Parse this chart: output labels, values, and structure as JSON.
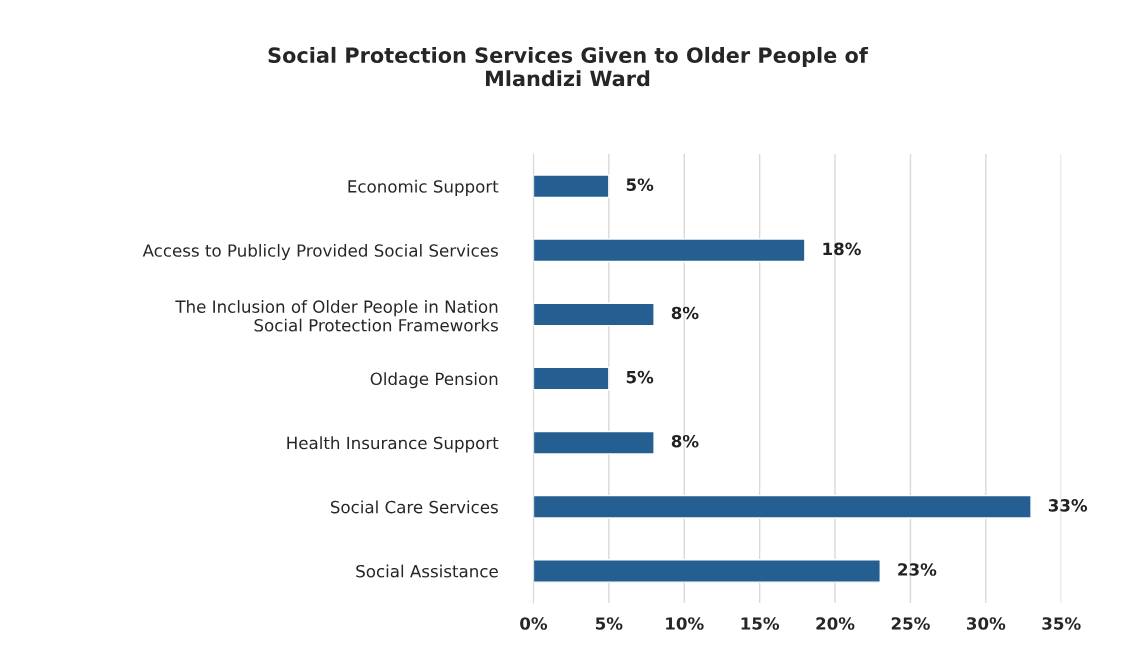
{
  "chart_data": {
    "type": "bar",
    "orientation": "horizontal",
    "title": "Social Protection Services Given to Older People of\nMlandizi Ward",
    "categories": [
      "Economic Support",
      "Access to Publicly Provided Social Services",
      "The Inclusion of Older People in Nation\nSocial Protection Frameworks",
      "Oldage Pension",
      "Health Insurance Support",
      "Social Care Services",
      "Social Assistance"
    ],
    "values": [
      5,
      18,
      8,
      5,
      8,
      33,
      23
    ],
    "value_labels": [
      "5%",
      "18%",
      "8%",
      "5%",
      "8%",
      "33%",
      "23%"
    ],
    "color": "#255e91",
    "xlim": [
      0,
      35
    ],
    "xticks": [
      {
        "value": 0,
        "label": "0%"
      },
      {
        "value": 5,
        "label": "5%"
      },
      {
        "value": 10,
        "label": "10%"
      },
      {
        "value": 15,
        "label": "15%"
      },
      {
        "value": 20,
        "label": "20%"
      },
      {
        "value": 25,
        "label": "25%"
      },
      {
        "value": 30,
        "label": "30%"
      },
      {
        "value": 35,
        "label": "35%"
      }
    ],
    "grid": "x"
  }
}
